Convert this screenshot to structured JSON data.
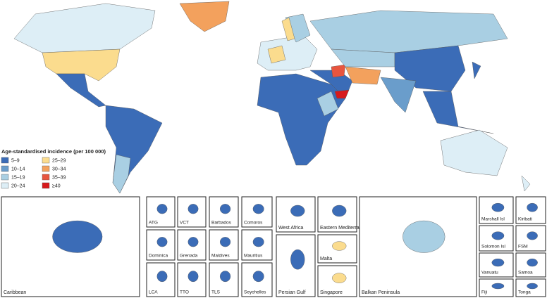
{
  "legend": {
    "title": "Age-standardised incidence (per 100 000)",
    "items": [
      {
        "label": "5–9",
        "color": "#3b6cb7"
      },
      {
        "label": "10–14",
        "color": "#6a9dcb"
      },
      {
        "label": "15–19",
        "color": "#a9cfe3"
      },
      {
        "label": "20–24",
        "color": "#ddeef6"
      },
      {
        "label": "25–29",
        "color": "#fbdc8e"
      },
      {
        "label": "30–34",
        "color": "#f3a15d"
      },
      {
        "label": "35–39",
        "color": "#e8553e"
      },
      {
        "label": "≥40",
        "color": "#d7191c"
      }
    ]
  },
  "insets": [
    "Caribbean",
    "ATG",
    "Dominica",
    "LCA",
    "VCT",
    "Grenada",
    "TTO",
    "Barbados",
    "Maldives",
    "TLS",
    "Comoros",
    "Mauritius",
    "Seychelles",
    "West Africa",
    "Persian Gulf",
    "Eastern Mediterranean",
    "Malta",
    "Singapore",
    "Balkan Peninsula",
    "Marshall Isl",
    "Solomon Isl",
    "Vanuatu",
    "Fiji",
    "Kiribati",
    "FSM",
    "Samoa",
    "Tonga"
  ]
}
